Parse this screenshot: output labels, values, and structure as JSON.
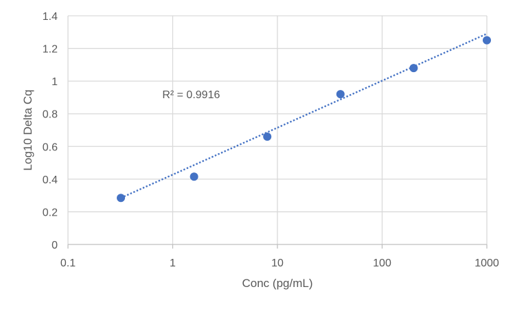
{
  "chart_data": {
    "type": "scatter",
    "title": "",
    "xlabel": "Conc (pg/mL)",
    "ylabel": "Log10 Delta Cq",
    "xscale": "log",
    "xlim": [
      0.1,
      1000
    ],
    "ylim": [
      0,
      1.4
    ],
    "x_ticks": [
      0.1,
      1,
      10,
      100,
      1000
    ],
    "x_tick_labels": [
      "0.1",
      "1",
      "10",
      "100",
      "1000"
    ],
    "y_ticks": [
      0,
      0.2,
      0.4,
      0.6,
      0.8,
      1,
      1.2,
      1.4
    ],
    "y_tick_labels": [
      "0",
      "0.2",
      "0.4",
      "0.6",
      "0.8",
      "1",
      "1.2",
      "1.4"
    ],
    "grid": true,
    "series": [
      {
        "x": [
          0.32,
          1.6,
          8.0,
          40,
          200,
          1000
        ],
        "y": [
          0.285,
          0.415,
          0.66,
          0.92,
          1.08,
          1.25
        ],
        "color": "#4472C4"
      }
    ],
    "trendline": {
      "type": "linear-on-log-x",
      "style": "dotted",
      "color": "#4472C4",
      "x_start": 0.32,
      "y_start": 0.285,
      "x_end": 1000,
      "y_end": 1.29
    },
    "annotations": [
      {
        "text": "R² = 0.9916",
        "x": 1.5,
        "y": 0.92
      }
    ]
  }
}
